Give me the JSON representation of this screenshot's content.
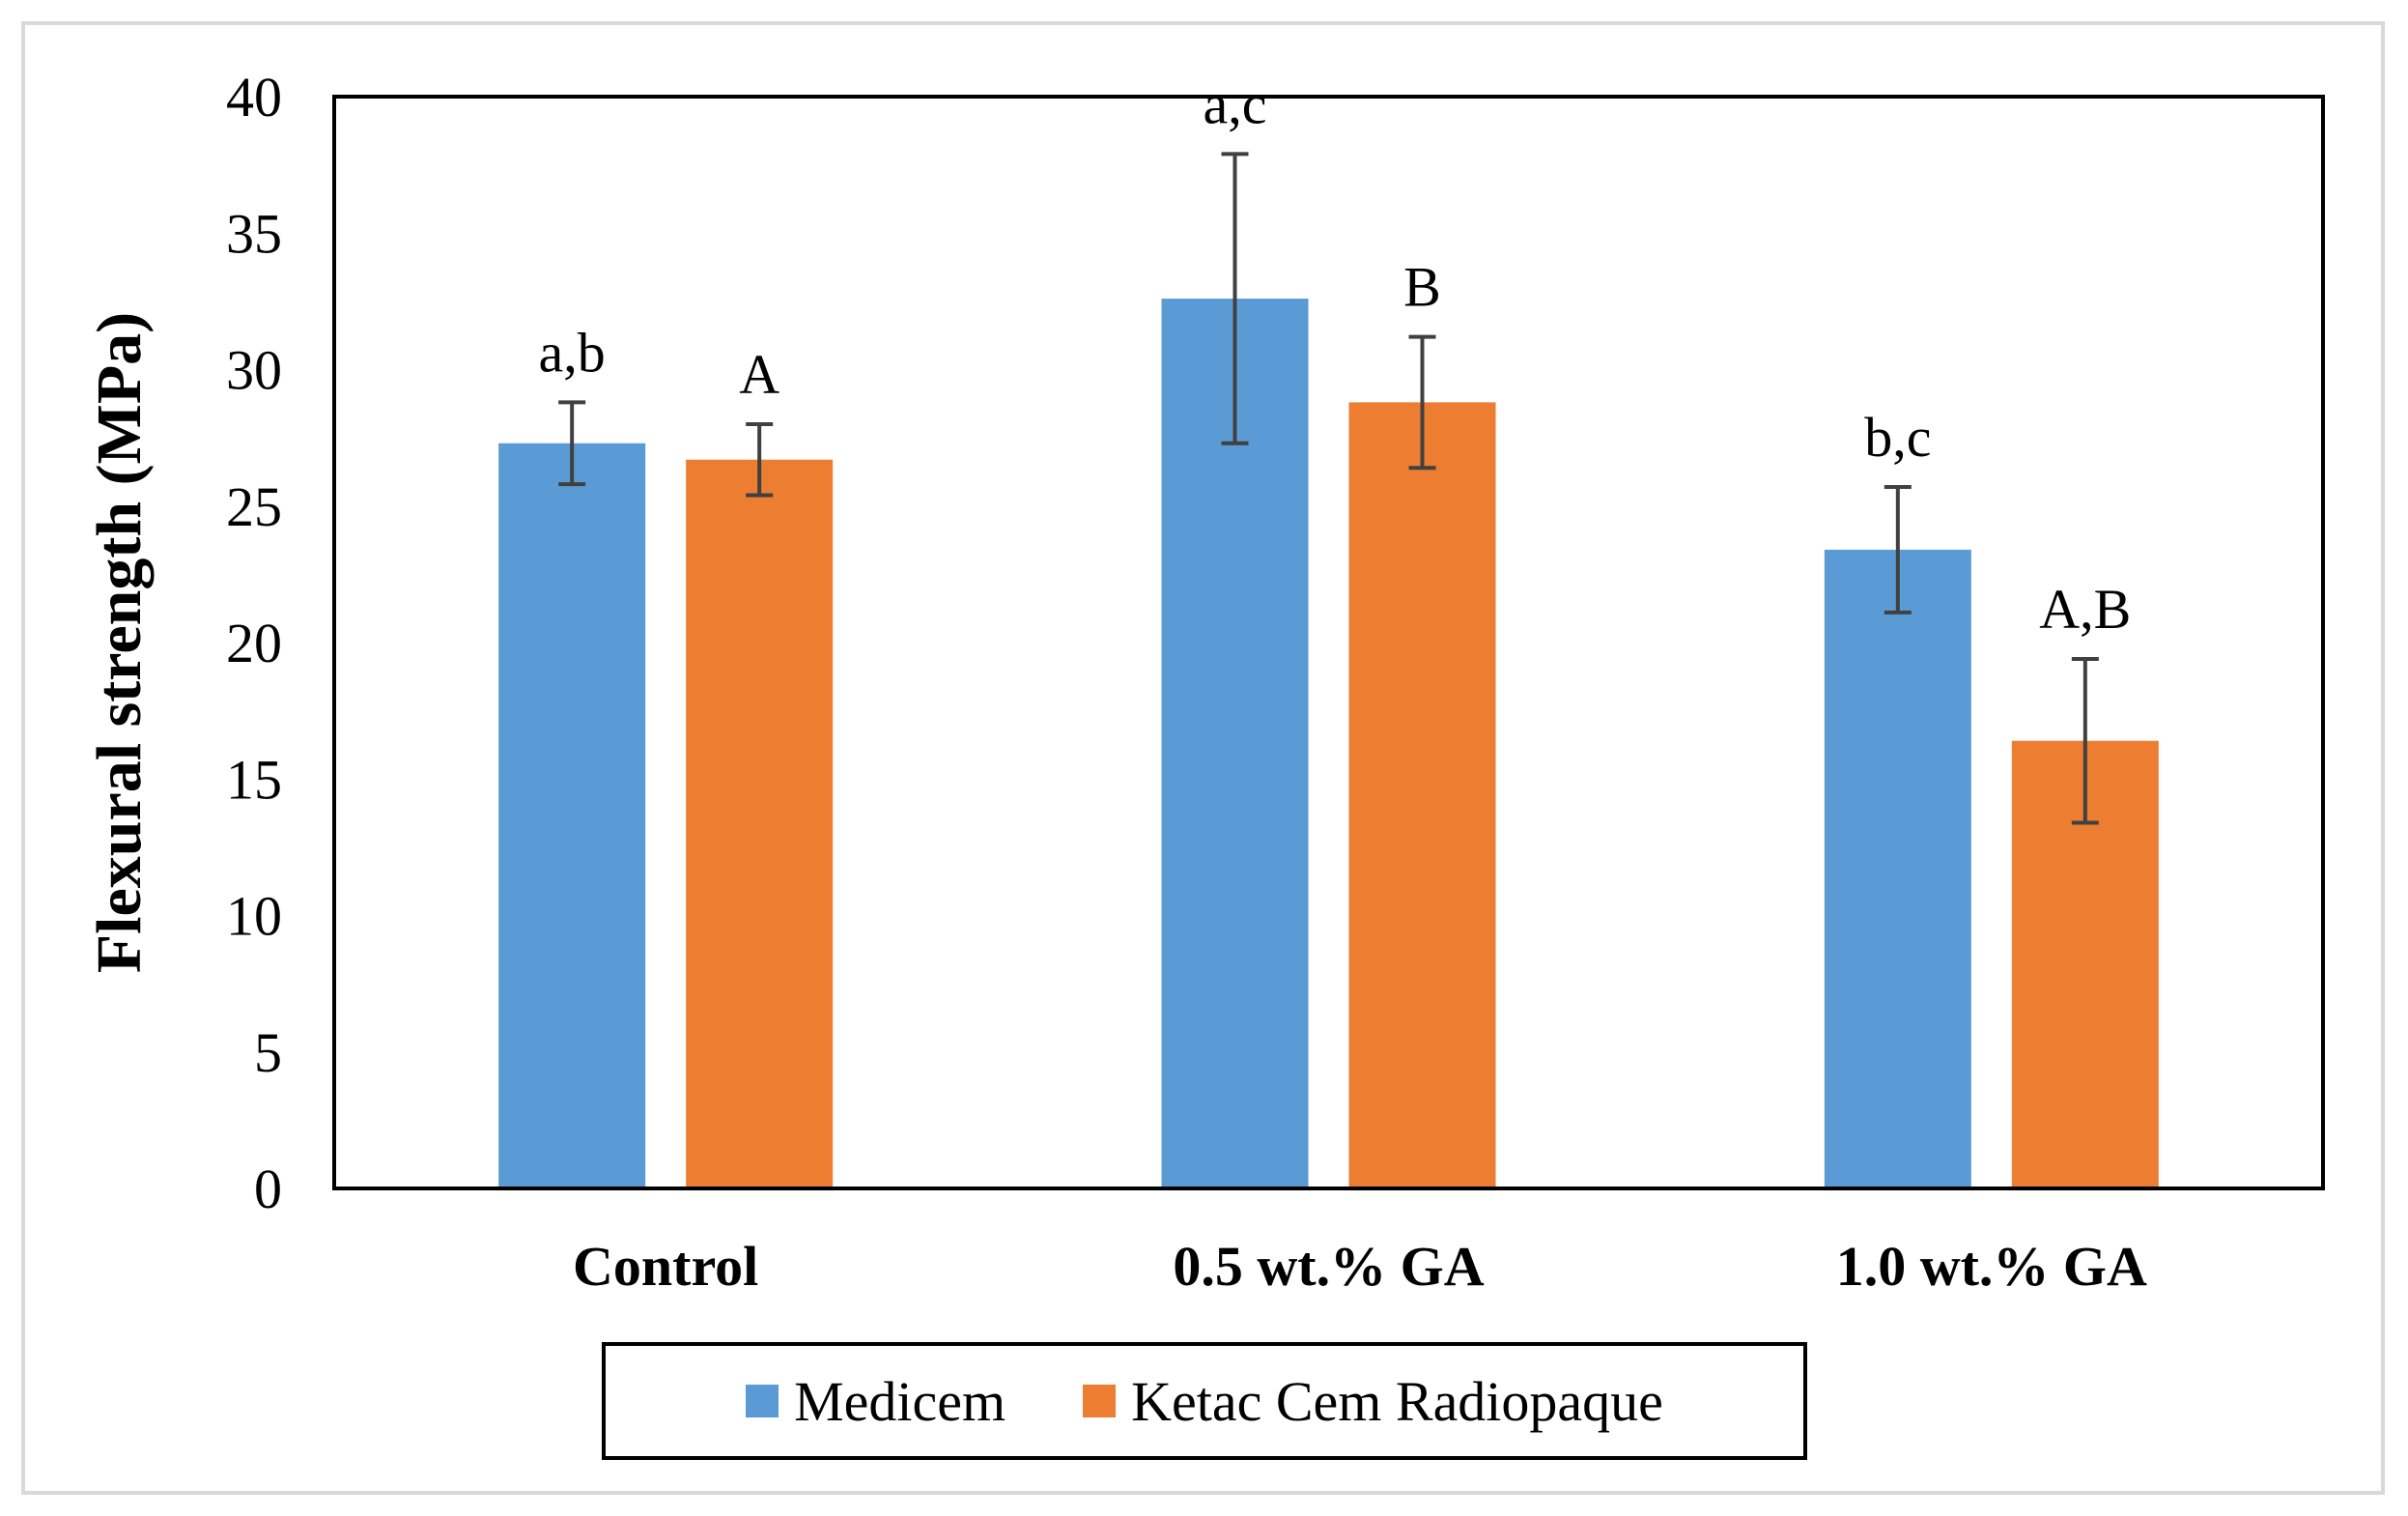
{
  "chart_data": {
    "type": "bar",
    "title": "",
    "xlabel": "",
    "ylabel": "Flexural strength (MPa)",
    "ylim": [
      0,
      40
    ],
    "yticks": [
      0,
      5,
      10,
      15,
      20,
      25,
      30,
      35,
      40
    ],
    "categories": [
      "Control",
      "0.5 wt.% GA",
      "1.0 wt.% GA"
    ],
    "series": [
      {
        "name": "Medicem",
        "color": "#5b9bd5",
        "values": [
          27.3,
          32.6,
          23.4
        ],
        "errors": [
          1.5,
          5.3,
          2.3
        ],
        "labels": [
          "a,b",
          "a,c",
          "b,c"
        ]
      },
      {
        "name": "Ketac Cem Radiopaque",
        "color": "#ed7d31",
        "values": [
          26.7,
          28.8,
          16.4
        ],
        "errors": [
          1.3,
          2.4,
          3.0
        ],
        "labels": [
          "A",
          "B",
          "A,B"
        ]
      }
    ],
    "legend_position": "bottom-center",
    "grid": false
  }
}
